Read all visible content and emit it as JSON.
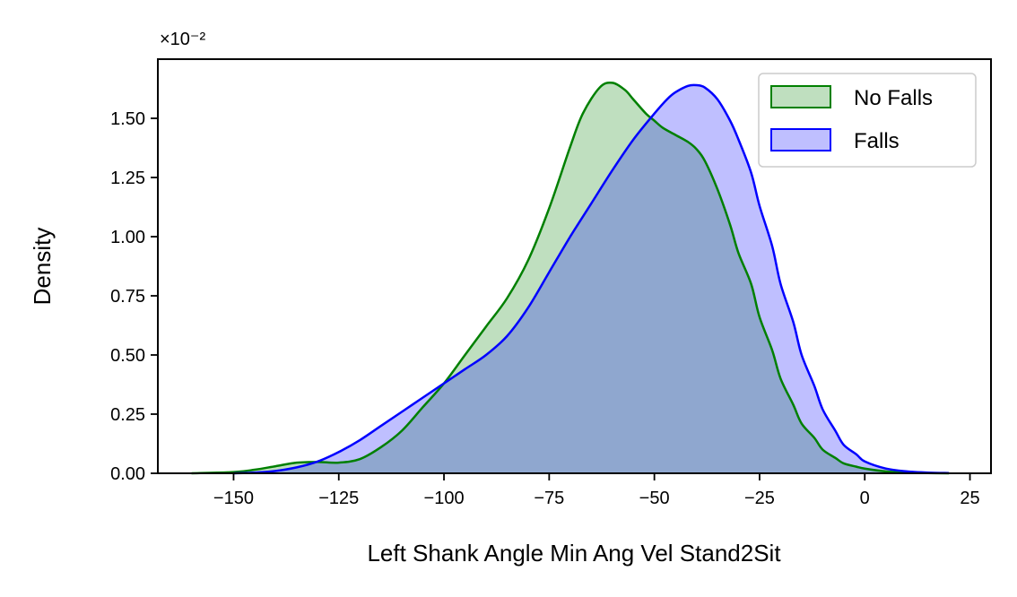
{
  "chart_data": {
    "type": "area",
    "title": "",
    "xlabel": "Left Shank Angle Min Ang Vel Stand2Sit",
    "ylabel": "Density",
    "y_multiplier_label": "×10⁻²",
    "xlim": [
      -168,
      30
    ],
    "ylim": [
      0,
      1.75
    ],
    "x_ticks": [
      -150,
      -125,
      -100,
      -75,
      -50,
      -25,
      0,
      25
    ],
    "x_tick_labels": [
      "−150",
      "−125",
      "−100",
      "−75",
      "−50",
      "−25",
      "0",
      "25"
    ],
    "y_ticks": [
      0,
      0.25,
      0.5,
      0.75,
      1.0,
      1.25,
      1.5
    ],
    "y_tick_labels": [
      "0.00",
      "0.25",
      "0.50",
      "0.75",
      "1.00",
      "1.25",
      "1.50"
    ],
    "grid": false,
    "legend_position": "top-right",
    "series": [
      {
        "name": "No Falls",
        "line_color": "#008000",
        "fill_color": "#008000",
        "fill_opacity": 0.25,
        "x": [
          -160,
          -150,
          -145,
          -140,
          -135,
          -130,
          -125,
          -120,
          -115,
          -110,
          -105,
          -100,
          -95,
          -90,
          -85,
          -80,
          -75,
          -70,
          -67,
          -63,
          -60,
          -57,
          -55,
          -52,
          -50,
          -48,
          -45,
          -42,
          -40,
          -38,
          -35,
          -32,
          -30,
          -27,
          -25,
          -22,
          -20,
          -17,
          -15,
          -12,
          -10,
          -7,
          -5,
          -2,
          0,
          5,
          10,
          15,
          20
        ],
        "y": [
          0.0,
          0.005,
          0.015,
          0.03,
          0.045,
          0.048,
          0.045,
          0.06,
          0.11,
          0.18,
          0.28,
          0.38,
          0.5,
          0.62,
          0.74,
          0.9,
          1.12,
          1.38,
          1.52,
          1.63,
          1.65,
          1.62,
          1.58,
          1.52,
          1.49,
          1.46,
          1.43,
          1.4,
          1.37,
          1.32,
          1.2,
          1.05,
          0.93,
          0.8,
          0.66,
          0.52,
          0.4,
          0.29,
          0.21,
          0.15,
          0.1,
          0.065,
          0.042,
          0.028,
          0.02,
          0.008,
          0.003,
          0.001,
          0.0
        ]
      },
      {
        "name": "Falls",
        "line_color": "#0000ff",
        "fill_color": "#0000ff",
        "fill_opacity": 0.25,
        "x": [
          -150,
          -145,
          -140,
          -135,
          -130,
          -125,
          -120,
          -115,
          -110,
          -105,
          -100,
          -95,
          -90,
          -85,
          -80,
          -75,
          -70,
          -65,
          -60,
          -55,
          -50,
          -47,
          -45,
          -42,
          -40,
          -38,
          -35,
          -32,
          -30,
          -27,
          -25,
          -22,
          -20,
          -17,
          -15,
          -12,
          -10,
          -7,
          -5,
          -2,
          0,
          5,
          10,
          15,
          20
        ],
        "y": [
          0.0,
          0.003,
          0.01,
          0.025,
          0.05,
          0.09,
          0.14,
          0.2,
          0.26,
          0.32,
          0.38,
          0.44,
          0.5,
          0.58,
          0.7,
          0.85,
          1.0,
          1.14,
          1.28,
          1.41,
          1.52,
          1.58,
          1.61,
          1.637,
          1.64,
          1.63,
          1.58,
          1.49,
          1.41,
          1.27,
          1.13,
          0.96,
          0.8,
          0.64,
          0.5,
          0.37,
          0.27,
          0.18,
          0.12,
          0.08,
          0.05,
          0.02,
          0.008,
          0.003,
          0.001
        ]
      }
    ]
  }
}
